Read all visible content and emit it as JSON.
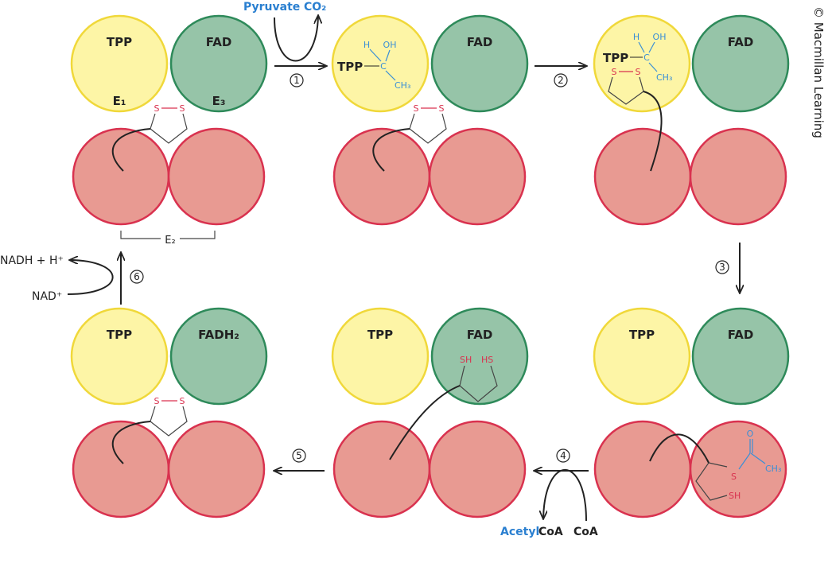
{
  "labels": {
    "tpp": "TPP",
    "fad": "FAD",
    "fadh2": "FADH₂",
    "e1": "E₁",
    "e2": "E₂",
    "e3": "E₃",
    "s": "S",
    "h": "H",
    "oh": "OH",
    "c": "C",
    "ch3": "CH₃",
    "o": "O",
    "sh": "SH",
    "hs": "HS"
  },
  "reactants": {
    "pyruvate": "Pyruvate",
    "co2": "CO₂",
    "acetyl": "Acetyl",
    "coa_product": "CoA",
    "coa": "CoA",
    "nadh": "NADH + H⁺",
    "nad": "NAD⁺"
  },
  "steps": [
    "1",
    "2",
    "3",
    "4",
    "5",
    "6"
  ],
  "copyright": "© Macmillan Learning",
  "colors": {
    "e1_tpp": "#fdf5a6",
    "e3_fad": "#96c4a8",
    "e2": "#e89a92",
    "sulfur": "#d9324f",
    "substrate": "#2a7fd0"
  }
}
